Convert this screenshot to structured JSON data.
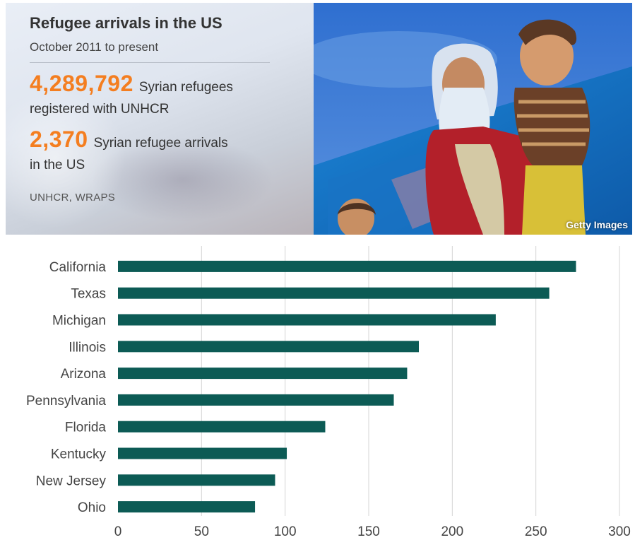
{
  "header": {
    "title": "Refugee arrivals in the US",
    "subtitle": "October 2011 to present",
    "stat1_value": "4,289,792",
    "stat1_text_line1": "Syrian refugees",
    "stat1_text_line2": "registered with UNHCR",
    "stat2_value": "2,370",
    "stat2_text_line1": "Syrian refugee arrivals",
    "stat2_text_line2": "in the US",
    "source": "UNHCR, WRAPS",
    "photo_credit": "Getty Images"
  },
  "colors": {
    "accent": "#f47e20",
    "bar": "#0c5b55",
    "grid": "#d4d4d4",
    "text": "#333333"
  },
  "chart_data": {
    "type": "bar",
    "orientation": "horizontal",
    "categories": [
      "California",
      "Texas",
      "Michigan",
      "Illinois",
      "Arizona",
      "Pennsylvania",
      "Florida",
      "Kentucky",
      "New Jersey",
      "Ohio"
    ],
    "values": [
      274,
      258,
      226,
      180,
      173,
      165,
      124,
      101,
      94,
      82
    ],
    "xlim": [
      0,
      300
    ],
    "xticks": [
      0,
      50,
      100,
      150,
      200,
      250,
      300
    ],
    "grid": "vertical",
    "legend": "none"
  }
}
